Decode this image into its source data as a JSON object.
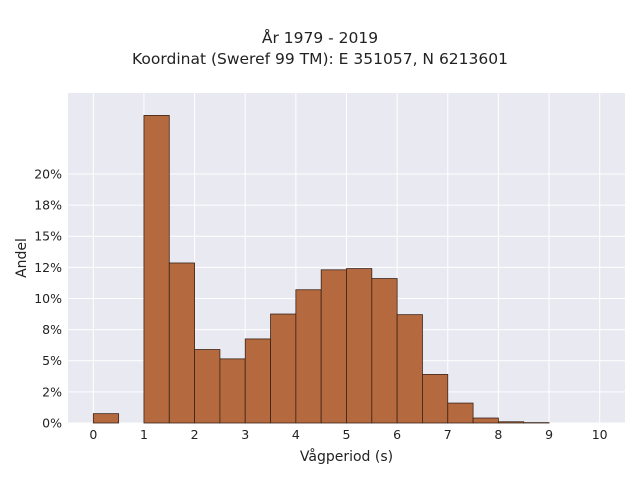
{
  "chart_data": {
    "type": "bar",
    "title": "År 1979 - 2019",
    "subtitle": "Koordinat (Sweref 99 TM): E 351057, N 6213601",
    "xlabel": "Vågperiod (s)",
    "ylabel": "Andel",
    "bin_width": 0.5,
    "bin_starts": [
      0,
      0.5,
      1,
      1.5,
      2,
      2.5,
      3,
      3.5,
      4,
      4.5,
      5,
      5.5,
      6,
      6.5,
      7,
      7.5,
      8,
      8.5,
      9,
      9.5
    ],
    "values": [
      0.75,
      0,
      24.7,
      12.85,
      5.9,
      5.15,
      6.75,
      8.75,
      10.7,
      12.3,
      12.4,
      11.6,
      8.7,
      3.9,
      1.6,
      0.4,
      0.1,
      0.03,
      0,
      0
    ],
    "x_ticks": [
      0,
      1,
      2,
      3,
      4,
      5,
      6,
      7,
      8,
      9,
      10
    ],
    "x_tick_labels": [
      "0",
      "1",
      "2",
      "3",
      "4",
      "5",
      "6",
      "7",
      "8",
      "9",
      "10"
    ],
    "y_ticks": [
      0,
      5,
      10,
      15,
      20,
      25
    ],
    "y_tick_labels": [
      "0%",
      "2%",
      "5%",
      "8%",
      "10%",
      "12%",
      "15%",
      "18%",
      "20%"
    ],
    "y_tick_values": [
      0,
      2.5,
      5,
      7.5,
      10,
      12.5,
      15,
      17.5,
      20
    ],
    "xlim": [
      -0.5,
      10.5
    ],
    "ylim": [
      0,
      26.5
    ],
    "grid": true,
    "colors": {
      "bar_fill": "#b5693f",
      "bar_edge": "#3a2418",
      "plot_background": "#e9e9f1",
      "grid": "#ffffff",
      "text": "#222222"
    }
  }
}
